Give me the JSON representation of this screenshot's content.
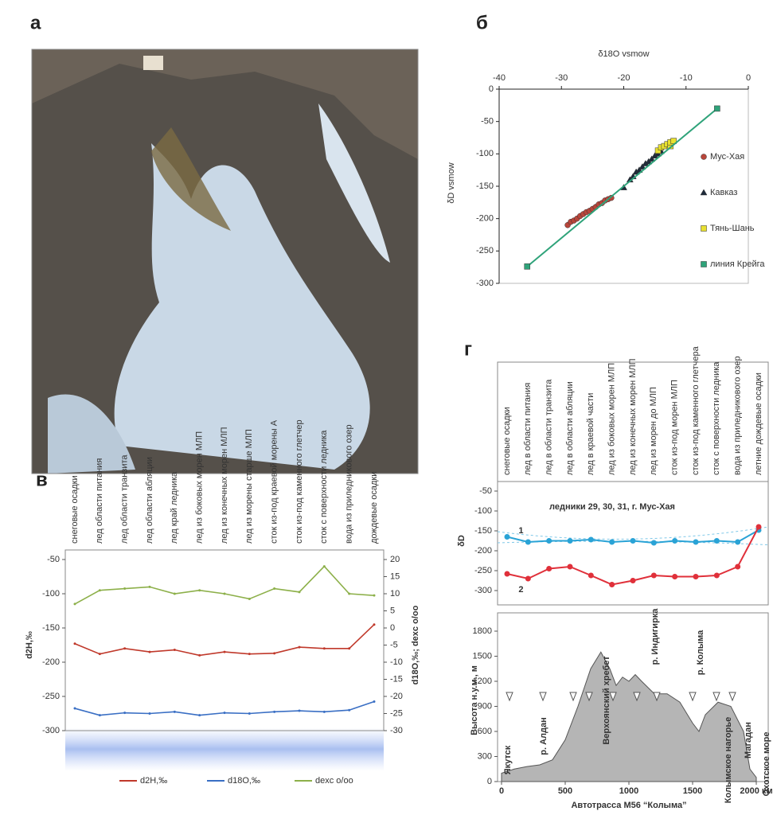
{
  "map": {
    "panel": "а"
  },
  "chart_data": [
    {
      "type": "scatter",
      "panel": "б",
      "x_label": "δ18O vsmow",
      "y_label": "δD vsmow",
      "xlim": [
        -40,
        0
      ],
      "xticks": [
        -40,
        -30,
        -20,
        -10,
        0
      ],
      "ylim": [
        -300,
        0
      ],
      "yticks": [
        0,
        -50,
        -100,
        -150,
        -200,
        -250,
        -300
      ],
      "series": [
        {
          "name": "Мус-Хая",
          "color": "#b8453a",
          "marker": "circle",
          "x": [
            -29,
            -28.5,
            -28,
            -27.5,
            -27,
            -26.5,
            -26,
            -25.5,
            -25,
            -24.5,
            -24,
            -23.5,
            -23,
            -22.5,
            -22
          ],
          "values": [
            -210,
            -205,
            -203,
            -200,
            -196,
            -193,
            -190,
            -188,
            -185,
            -182,
            -178,
            -176,
            -172,
            -170,
            -168
          ]
        },
        {
          "name": "Кавказ",
          "color": "#1e2a3a",
          "marker": "triangle",
          "x": [
            -20,
            -19,
            -18.5,
            -18,
            -17.5,
            -17,
            -16.5,
            -16,
            -15.5,
            -15,
            -14.5,
            -14
          ],
          "values": [
            -152,
            -140,
            -135,
            -128,
            -125,
            -120,
            -115,
            -112,
            -108,
            -103,
            -100,
            -96
          ]
        },
        {
          "name": "Тянь-Шань",
          "color": "#e8e030",
          "marker": "square",
          "x": [
            -14.5,
            -14,
            -13.5,
            -13,
            -12.5,
            -12.5,
            -12
          ],
          "values": [
            -95,
            -90,
            -88,
            -85,
            -88,
            -82,
            -80
          ]
        },
        {
          "name": "линия Крейга",
          "color": "#2fa37a",
          "marker": "square",
          "connect": true,
          "x": [
            -35.5,
            -5
          ],
          "values": [
            -274,
            -30
          ]
        }
      ]
    },
    {
      "type": "line",
      "panel": "в",
      "y_label": "d2H,‰",
      "y2_label": "d18O,‰; dexc o/oo",
      "categories": [
        "снеговые осадки",
        "лед области питания",
        "лед области транзита",
        "лед области абляции",
        "лед край ледника",
        "лед из боковых морен МЛП",
        "лед из конечных морен МЛП",
        "лед из морены старше МЛП",
        "сток из-под краевой морены А",
        "сток из-под каменного глетчер",
        "сток с поверхности ледника",
        "вода из приледникового озер",
        "дождевые осадки"
      ],
      "ylim": [
        -300,
        -50
      ],
      "yticks": [
        -50,
        -100,
        -150,
        -200,
        -250,
        -300
      ],
      "y2lim": [
        -30,
        20
      ],
      "y2ticks": [
        20,
        15,
        10,
        5,
        0,
        -5,
        -10,
        -15,
        -20,
        -25,
        -30
      ],
      "series": [
        {
          "name": "d2H,‰",
          "color": "#c0392b",
          "values": [
            -173,
            -188,
            -180,
            -185,
            -182,
            -190,
            -185,
            -188,
            -187,
            -178,
            -180,
            -180,
            -145
          ]
        },
        {
          "name": "d18O,‰",
          "color": "#3a6fc4",
          "axis": "y2",
          "values": [
            -23.5,
            -25.5,
            -24.8,
            -25,
            -24.5,
            -25.5,
            -24.8,
            -25,
            -24.5,
            -24.2,
            -24.5,
            -24,
            -21.5
          ]
        },
        {
          "name": "dexc o/oo",
          "color": "#8db04a",
          "axis": "y2",
          "values": [
            7,
            11,
            11.5,
            12,
            10,
            11,
            10,
            8.5,
            11.5,
            10.5,
            18,
            10,
            9.5
          ]
        }
      ]
    },
    {
      "type": "line",
      "panel": "г",
      "y_label": "δD",
      "annotation": "ледники 29, 30, 31, г. Мус-Хая",
      "categories": [
        "снеговые осадки",
        "лед в области питания",
        "лед в области транзита",
        "лед в области абляции",
        "лед в краевой части",
        "лед из боковых морен МЛП",
        "лед из конечных морен МЛП",
        "лед из морен до МЛП",
        "сток из-под морен МЛП",
        "сток из-под каменного глетчера",
        "сток с поверхности ледника",
        "вода из приледникового озер",
        "летние дождевые осадки"
      ],
      "ylim": [
        -300,
        -50
      ],
      "yticks": [
        -50,
        -100,
        -150,
        -200,
        -250,
        -300
      ],
      "series": [
        {
          "name": "1",
          "color": "#2aa3d6",
          "values": [
            -165,
            -178,
            -175,
            -175,
            -172,
            -178,
            -175,
            -180,
            -175,
            -178,
            -175,
            -178,
            -148
          ]
        },
        {
          "name": "2",
          "color": "#e0303a",
          "values": [
            -258,
            -270,
            -245,
            -240,
            -262,
            -285,
            -275,
            -262,
            -265,
            -265,
            -262,
            -240,
            -140
          ]
        }
      ]
    },
    {
      "type": "area",
      "y_label": "Высота н.у.м., м",
      "x_label": "Автотрасса М56 “Колыма”",
      "color": "#b5b5b5",
      "xlim": [
        0,
        2000
      ],
      "xticks": [
        0,
        500,
        1000,
        1500,
        {
          "value": 2000,
          "label": "2000 км"
        }
      ],
      "ylim": [
        0,
        1800
      ],
      "yticks": [
        0,
        300,
        600,
        900,
        1200,
        1500,
        1800
      ],
      "x": [
        0,
        100,
        200,
        300,
        400,
        500,
        600,
        700,
        780,
        850,
        900,
        950,
        1000,
        1050,
        1100,
        1200,
        1300,
        1400,
        1500,
        1550,
        1600,
        1700,
        1800,
        1900,
        1950,
        2000
      ],
      "values": [
        100,
        150,
        180,
        200,
        260,
        500,
        900,
        1350,
        1550,
        1350,
        1150,
        1250,
        1200,
        1280,
        1200,
        1050,
        1050,
        950,
        700,
        600,
        800,
        950,
        900,
        600,
        150,
        50
      ],
      "annotations": [
        "Якутск",
        "р. Алдан",
        "Верхоянский хребет",
        "р. Индигирка",
        "р. Колыма",
        "Колымское нагорье",
        "Магадан",
        "Охотское море"
      ]
    }
  ]
}
